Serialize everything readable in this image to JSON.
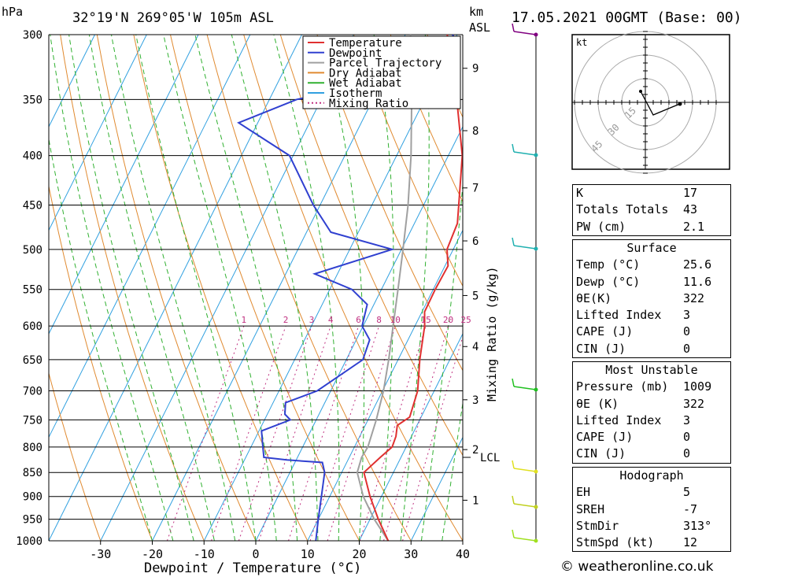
{
  "header": {
    "location": "32°19'N 269°05'W 105m ASL",
    "datetime": "17.05.2021 00GMT (Base: 00)",
    "pressure_unit": "hPa",
    "km_unit": "km",
    "asl_label": "ASL"
  },
  "chart_data": {
    "type": "line",
    "xlabel": "Dewpoint / Temperature (°C)",
    "y2label": "Mixing Ratio (g/kg)",
    "xlim": [
      -40,
      40
    ],
    "ylim": [
      1000,
      300
    ],
    "y_scale": "log",
    "x_ticks": [
      -30,
      -20,
      -10,
      0,
      10,
      20,
      30,
      40
    ],
    "pressure_levels": [
      300,
      350,
      400,
      450,
      500,
      550,
      600,
      650,
      700,
      750,
      800,
      850,
      900,
      950,
      1000
    ],
    "km_ticks": [
      {
        "km": 1,
        "p": 908
      },
      {
        "km": 2,
        "p": 805
      },
      {
        "km": 3,
        "p": 715
      },
      {
        "km": 4,
        "p": 630
      },
      {
        "km": 5,
        "p": 558
      },
      {
        "km": 6,
        "p": 490
      },
      {
        "km": 7,
        "p": 432
      },
      {
        "km": 8,
        "p": 377
      },
      {
        "km": 9,
        "p": 325
      }
    ],
    "lcl": {
      "label": "LCL",
      "p": 820
    },
    "mixing_ratio_labels": [
      1,
      2,
      3,
      4,
      6,
      8,
      10,
      15,
      20,
      25
    ],
    "legend": [
      "Temperature",
      "Dewpoint",
      "Parcel Trajectory",
      "Dry Adiabat",
      "Wet Adiabat",
      "Isotherm",
      "Mixing Ratio"
    ],
    "series": [
      {
        "name": "Temperature",
        "color": "#e03030",
        "points": [
          [
            1000,
            25.6
          ],
          [
            950,
            21.6
          ],
          [
            900,
            17.8
          ],
          [
            850,
            14.3
          ],
          [
            820,
            16.0
          ],
          [
            800,
            17.3
          ],
          [
            780,
            17.0
          ],
          [
            760,
            16.2
          ],
          [
            745,
            17.8
          ],
          [
            700,
            16.8
          ],
          [
            650,
            14.2
          ],
          [
            600,
            11.9
          ],
          [
            580,
            10.5
          ],
          [
            550,
            10.4
          ],
          [
            520,
            10.6
          ],
          [
            500,
            8.8
          ],
          [
            470,
            8.3
          ],
          [
            450,
            6.8
          ],
          [
            400,
            2.7
          ],
          [
            350,
            -3.8
          ],
          [
            330,
            -7.2
          ],
          [
            300,
            -11.9
          ]
        ]
      },
      {
        "name": "Dewpoint",
        "color": "#3040d0",
        "points": [
          [
            1000,
            11.6
          ],
          [
            950,
            10.0
          ],
          [
            900,
            8.4
          ],
          [
            850,
            6.7
          ],
          [
            830,
            5.3
          ],
          [
            825,
            -1.8
          ],
          [
            820,
            -6.5
          ],
          [
            800,
            -7.7
          ],
          [
            770,
            -9.5
          ],
          [
            750,
            -5.0
          ],
          [
            740,
            -6.6
          ],
          [
            720,
            -7.6
          ],
          [
            700,
            -2.6
          ],
          [
            650,
            3.2
          ],
          [
            620,
            2.6
          ],
          [
            600,
            -0.2
          ],
          [
            570,
            -1.3
          ],
          [
            550,
            -5.7
          ],
          [
            530,
            -14.4
          ],
          [
            500,
            -1.8
          ],
          [
            480,
            -15.3
          ],
          [
            450,
            -21.3
          ],
          [
            400,
            -30.7
          ],
          [
            370,
            -43.7
          ],
          [
            350,
            -34.7
          ],
          [
            340,
            -24.3
          ],
          [
            335,
            -23.7
          ],
          [
            320,
            -17.4
          ],
          [
            305,
            -9.2
          ],
          [
            300,
            -10.9
          ]
        ]
      },
      {
        "name": "Parcel Trajectory",
        "color": "#a0a0a0",
        "points": [
          [
            1000,
            25.6
          ],
          [
            950,
            20.8
          ],
          [
            900,
            16.5
          ],
          [
            850,
            13.0
          ],
          [
            820,
            12.4
          ],
          [
            800,
            12.6
          ],
          [
            750,
            11.6
          ],
          [
            700,
            10.2
          ],
          [
            650,
            8.2
          ],
          [
            600,
            5.8
          ],
          [
            550,
            3.2
          ],
          [
            500,
            0.3
          ],
          [
            450,
            -3.0
          ],
          [
            400,
            -7.2
          ],
          [
            350,
            -12.5
          ],
          [
            300,
            -19.0
          ]
        ]
      }
    ]
  },
  "hodograph": {
    "unit": "kt",
    "ring_labels": [
      "15",
      "30",
      "45"
    ]
  },
  "indices": [
    {
      "label": "K",
      "value": "17"
    },
    {
      "label": "Totals Totals",
      "value": "43"
    },
    {
      "label": "PW (cm)",
      "value": "2.1"
    }
  ],
  "surface": {
    "title": "Surface",
    "rows": [
      {
        "label": "Temp (°C)",
        "value": "25.6"
      },
      {
        "label": "Dewp (°C)",
        "value": "11.6"
      },
      {
        "label": "θE(K)",
        "value": "322"
      },
      {
        "label": "Lifted Index",
        "value": "3"
      },
      {
        "label": "CAPE (J)",
        "value": "0"
      },
      {
        "label": "CIN (J)",
        "value": "0"
      }
    ]
  },
  "most_unstable": {
    "title": "Most Unstable",
    "rows": [
      {
        "label": "Pressure (mb)",
        "value": "1009"
      },
      {
        "label": "θE (K)",
        "value": "322"
      },
      {
        "label": "Lifted Index",
        "value": "3"
      },
      {
        "label": "CAPE (J)",
        "value": "0"
      },
      {
        "label": "CIN (J)",
        "value": "0"
      }
    ]
  },
  "hodograph_table": {
    "title": "Hodograph",
    "rows": [
      {
        "label": "EH",
        "value": "5"
      },
      {
        "label": "SREH",
        "value": "-7"
      },
      {
        "label": "StmDir",
        "value": "313°"
      },
      {
        "label": "StmSpd (kt)",
        "value": "12"
      }
    ]
  },
  "footer": "© weatheronline.co.uk",
  "colors": {
    "temperature": "#e03030",
    "dewpoint": "#3040d0",
    "parcel": "#a0a0a0",
    "dry_adiabat": "#e08a30",
    "wet_adiabat": "#30b030",
    "isotherm": "#30a0e0",
    "mixing_ratio": "#c03080"
  }
}
